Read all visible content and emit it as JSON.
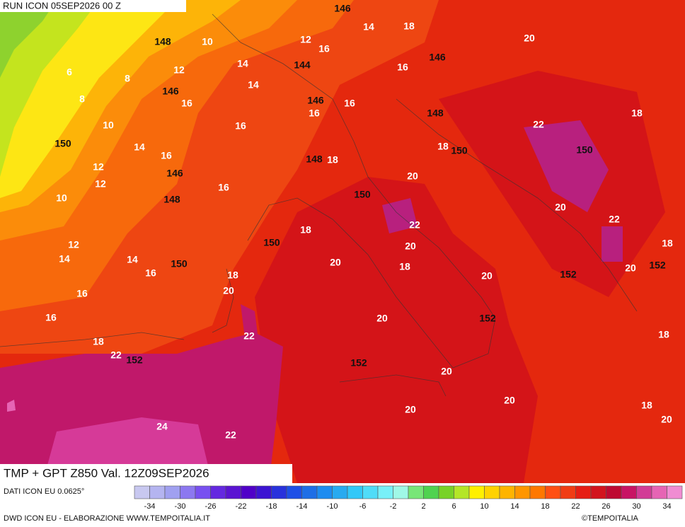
{
  "header": {
    "run": "RUN ICON 05SEP2026 00 Z"
  },
  "title": "TMP + GPT Z850 Val. 12Z09SEP2026",
  "map": {
    "temperature_labels": [
      14,
      18,
      20,
      10,
      12,
      16,
      14,
      16,
      6,
      8,
      12,
      14,
      8,
      16,
      16,
      16,
      18,
      10,
      16,
      22,
      14,
      18,
      16,
      18,
      12,
      12,
      20,
      16,
      10,
      20,
      22,
      22,
      18,
      12,
      20,
      18,
      14,
      14,
      20,
      18,
      20,
      16,
      18,
      20,
      16,
      20,
      16,
      20,
      22,
      18,
      18,
      22,
      20,
      20,
      20,
      18,
      20,
      24,
      22
    ],
    "geopotential_labels": [
      146,
      148,
      144,
      146,
      146,
      146,
      148,
      150,
      148,
      146,
      150,
      148,
      150,
      150,
      150,
      150,
      152,
      152,
      152,
      152,
      152
    ]
  },
  "legend": {
    "source": "DATI ICON EU 0.0625°",
    "ticks": [
      -34,
      -30,
      -26,
      -22,
      -18,
      -14,
      -10,
      -6,
      -2,
      2,
      6,
      10,
      14,
      18,
      22,
      26,
      30,
      34
    ]
  },
  "footer": {
    "credit": "DWD ICON EU - ELABORAZIONE WWW.TEMPOITALIA.IT",
    "copyright": "©TEMPOITALIA"
  }
}
